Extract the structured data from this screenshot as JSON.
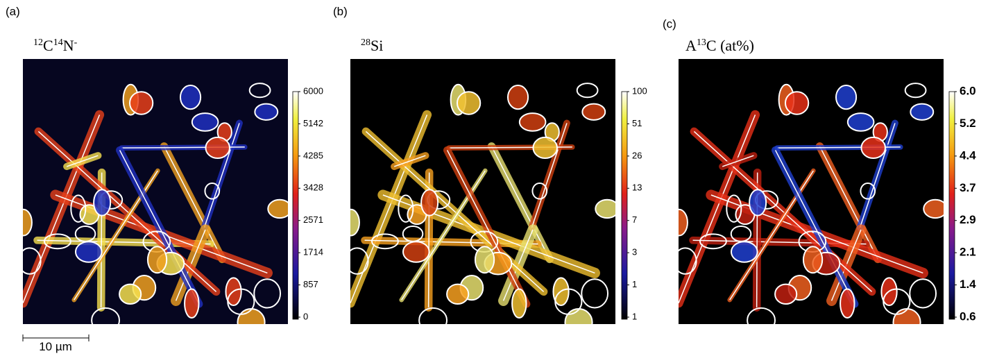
{
  "panels": [
    {
      "label": "(a)",
      "title": [
        {
          "sup": "12"
        },
        {
          "text": "C"
        },
        {
          "sup": "14"
        },
        {
          "text": "N"
        },
        {
          "sup": "-"
        }
      ],
      "colorbar": [
        "6000",
        "5142",
        "4285",
        "3428",
        "2571",
        "1714",
        "857",
        "0"
      ]
    },
    {
      "label": "(b)",
      "title": [
        {
          "sup": "28"
        },
        {
          "text": "Si"
        }
      ],
      "colorbar": [
        "100",
        "51",
        "26",
        "13",
        "7",
        "3",
        "1",
        "1"
      ]
    },
    {
      "label": "(c)",
      "title": [
        {
          "text": "A"
        },
        {
          "sup": "13"
        },
        {
          "text": "C (at%)"
        }
      ],
      "colorbar": [
        "6.0",
        "5.2",
        "4.4",
        "3.7",
        "2.9",
        "2.1",
        "1.4",
        "0.6"
      ]
    }
  ],
  "scale_bar": "10 µm"
}
